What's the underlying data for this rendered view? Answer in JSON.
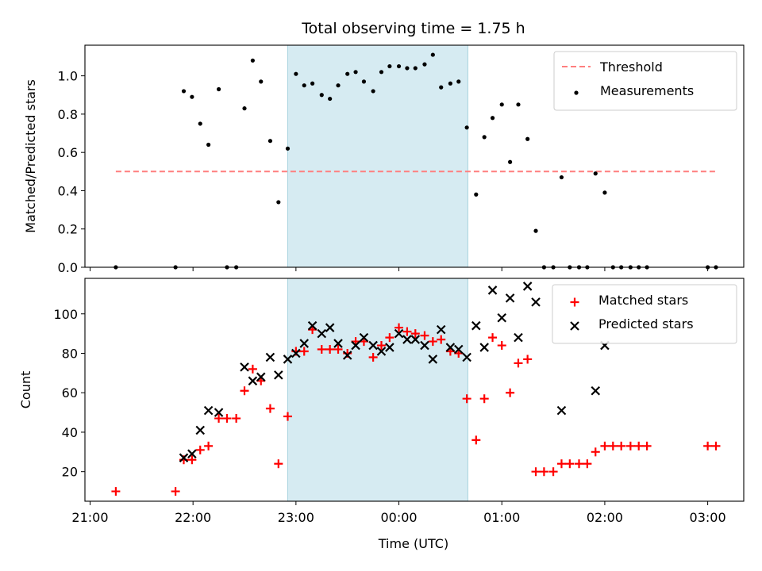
{
  "chart_data": {
    "type": "scatter",
    "title": "Total observing time = 1.75 h",
    "shared_x": {
      "xlabel": "Time (UTC)",
      "x_unit": "hours after 21:00 UTC",
      "xlim": [
        -0.05,
        6.35
      ],
      "ticks": [
        0,
        1,
        2,
        3,
        4,
        5,
        6
      ],
      "tick_labels": [
        "21:00",
        "22:00",
        "23:00",
        "00:00",
        "01:00",
        "02:00",
        "03:00"
      ],
      "observing_window": [
        1.92,
        3.67
      ]
    },
    "panels": [
      {
        "ylabel": "Matched/Predicted stars",
        "ylim": [
          0,
          1.16
        ],
        "yticks": [
          0.0,
          0.2,
          0.4,
          0.6,
          0.8,
          1.0
        ],
        "ytick_labels": [
          "0.0",
          "0.2",
          "0.4",
          "0.6",
          "0.8",
          "1.0"
        ],
        "legend": "top-right",
        "threshold": {
          "name": "Threshold",
          "value": 0.5,
          "x_range": [
            0.25,
            6.08
          ],
          "color": "#ff7f7f"
        },
        "series": [
          {
            "name": "Measurements",
            "marker": "dot",
            "color": "#000000",
            "points": [
              [
                0.25,
                0.0
              ],
              [
                0.83,
                0.0
              ],
              [
                0.91,
                0.92
              ],
              [
                0.99,
                0.89
              ],
              [
                1.07,
                0.75
              ],
              [
                1.15,
                0.64
              ],
              [
                1.25,
                0.93
              ],
              [
                1.33,
                0.0
              ],
              [
                1.42,
                0.0
              ],
              [
                1.5,
                0.83
              ],
              [
                1.58,
                1.08
              ],
              [
                1.66,
                0.97
              ],
              [
                1.75,
                0.66
              ],
              [
                1.83,
                0.34
              ],
              [
                1.92,
                0.62
              ],
              [
                2.0,
                1.01
              ],
              [
                2.08,
                0.95
              ],
              [
                2.16,
                0.96
              ],
              [
                2.25,
                0.9
              ],
              [
                2.33,
                0.88
              ],
              [
                2.41,
                0.95
              ],
              [
                2.5,
                1.01
              ],
              [
                2.58,
                1.02
              ],
              [
                2.66,
                0.97
              ],
              [
                2.75,
                0.92
              ],
              [
                2.83,
                1.02
              ],
              [
                2.91,
                1.05
              ],
              [
                3.0,
                1.05
              ],
              [
                3.08,
                1.04
              ],
              [
                3.16,
                1.04
              ],
              [
                3.25,
                1.06
              ],
              [
                3.33,
                1.11
              ],
              [
                3.41,
                0.94
              ],
              [
                3.5,
                0.96
              ],
              [
                3.58,
                0.97
              ],
              [
                3.66,
                0.73
              ],
              [
                3.75,
                0.38
              ],
              [
                3.83,
                0.68
              ],
              [
                3.91,
                0.78
              ],
              [
                4.0,
                0.85
              ],
              [
                4.08,
                0.55
              ],
              [
                4.16,
                0.85
              ],
              [
                4.25,
                0.67
              ],
              [
                4.33,
                0.19
              ],
              [
                4.41,
                0.0
              ],
              [
                4.5,
                0.0
              ],
              [
                4.58,
                0.47
              ],
              [
                4.66,
                0.0
              ],
              [
                4.75,
                0.0
              ],
              [
                4.83,
                0.0
              ],
              [
                4.91,
                0.49
              ],
              [
                5.0,
                0.39
              ],
              [
                5.08,
                0.0
              ],
              [
                5.16,
                0.0
              ],
              [
                5.25,
                0.0
              ],
              [
                5.33,
                0.0
              ],
              [
                5.41,
                0.0
              ],
              [
                6.0,
                0.0
              ],
              [
                6.08,
                0.0
              ]
            ]
          }
        ]
      },
      {
        "ylabel": "Count",
        "ylim": [
          5,
          118
        ],
        "yticks": [
          20,
          40,
          60,
          80,
          100
        ],
        "ytick_labels": [
          "20",
          "40",
          "60",
          "80",
          "100"
        ],
        "legend": "top-right",
        "series": [
          {
            "name": "Matched stars",
            "marker": "plus",
            "color": "#ff0000",
            "points": [
              [
                0.25,
                10
              ],
              [
                0.83,
                10
              ],
              [
                0.91,
                26
              ],
              [
                0.99,
                26
              ],
              [
                1.07,
                31
              ],
              [
                1.15,
                33
              ],
              [
                1.25,
                47
              ],
              [
                1.33,
                47
              ],
              [
                1.42,
                47
              ],
              [
                1.5,
                61
              ],
              [
                1.58,
                72
              ],
              [
                1.66,
                66
              ],
              [
                1.75,
                52
              ],
              [
                1.83,
                24
              ],
              [
                1.92,
                48
              ],
              [
                2.0,
                81
              ],
              [
                2.08,
                81
              ],
              [
                2.16,
                92
              ],
              [
                2.25,
                82
              ],
              [
                2.33,
                82
              ],
              [
                2.41,
                82
              ],
              [
                2.5,
                80
              ],
              [
                2.58,
                86
              ],
              [
                2.66,
                86
              ],
              [
                2.75,
                78
              ],
              [
                2.83,
                84
              ],
              [
                2.91,
                88
              ],
              [
                3.0,
                93
              ],
              [
                3.08,
                91
              ],
              [
                3.16,
                90
              ],
              [
                3.25,
                89
              ],
              [
                3.33,
                86
              ],
              [
                3.41,
                87
              ],
              [
                3.5,
                81
              ],
              [
                3.58,
                80
              ],
              [
                3.66,
                57
              ],
              [
                3.75,
                36
              ],
              [
                3.83,
                57
              ],
              [
                3.91,
                88
              ],
              [
                4.0,
                84
              ],
              [
                4.08,
                60
              ],
              [
                4.16,
                75
              ],
              [
                4.25,
                77
              ],
              [
                4.33,
                20
              ],
              [
                4.41,
                20
              ],
              [
                4.5,
                20
              ],
              [
                4.58,
                24
              ],
              [
                4.66,
                24
              ],
              [
                4.75,
                24
              ],
              [
                4.83,
                24
              ],
              [
                4.91,
                30
              ],
              [
                5.0,
                33
              ],
              [
                5.08,
                33
              ],
              [
                5.16,
                33
              ],
              [
                5.25,
                33
              ],
              [
                5.33,
                33
              ],
              [
                5.41,
                33
              ],
              [
                6.0,
                33
              ],
              [
                6.08,
                33
              ]
            ]
          },
          {
            "name": "Predicted stars",
            "marker": "x",
            "color": "#000000",
            "points": [
              [
                0.91,
                27
              ],
              [
                0.99,
                29
              ],
              [
                1.07,
                41
              ],
              [
                1.15,
                51
              ],
              [
                1.25,
                50
              ],
              [
                1.5,
                73
              ],
              [
                1.58,
                66
              ],
              [
                1.66,
                68
              ],
              [
                1.75,
                78
              ],
              [
                1.83,
                69
              ],
              [
                1.92,
                77
              ],
              [
                2.0,
                80
              ],
              [
                2.08,
                85
              ],
              [
                2.16,
                94
              ],
              [
                2.25,
                90
              ],
              [
                2.33,
                93
              ],
              [
                2.41,
                85
              ],
              [
                2.5,
                79
              ],
              [
                2.58,
                84
              ],
              [
                2.66,
                88
              ],
              [
                2.75,
                84
              ],
              [
                2.83,
                81
              ],
              [
                2.91,
                83
              ],
              [
                3.0,
                90
              ],
              [
                3.08,
                87
              ],
              [
                3.16,
                87
              ],
              [
                3.25,
                84
              ],
              [
                3.33,
                77
              ],
              [
                3.41,
                92
              ],
              [
                3.5,
                83
              ],
              [
                3.58,
                82
              ],
              [
                3.66,
                78
              ],
              [
                3.75,
                94
              ],
              [
                3.83,
                83
              ],
              [
                3.91,
                112
              ],
              [
                4.0,
                98
              ],
              [
                4.08,
                108
              ],
              [
                4.16,
                88
              ],
              [
                4.25,
                114
              ],
              [
                4.33,
                106
              ],
              [
                4.58,
                51
              ],
              [
                4.91,
                61
              ],
              [
                5.0,
                84
              ]
            ]
          }
        ]
      }
    ]
  }
}
